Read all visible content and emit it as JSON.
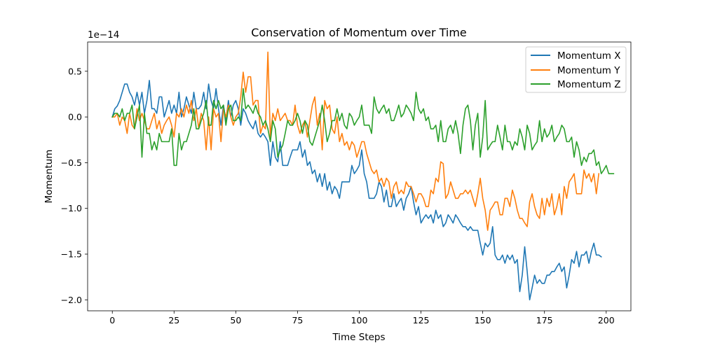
{
  "chart_data": {
    "type": "line",
    "title": "Conservation of Momentum over Time",
    "xlabel": "Time Steps",
    "ylabel": "Momentum",
    "offset_text": "1e−14",
    "xlim": [
      -10,
      210
    ],
    "ylim": [
      -2.12,
      0.82
    ],
    "xticks": [
      0,
      25,
      50,
      75,
      100,
      125,
      150,
      175,
      200
    ],
    "xtick_labels": [
      "0",
      "25",
      "50",
      "75",
      "100",
      "125",
      "150",
      "175",
      "200"
    ],
    "yticks": [
      0.5,
      0.0,
      -0.5,
      -1.0,
      -1.5,
      -2.0
    ],
    "ytick_labels": [
      "0.5",
      "0.0",
      "−0.5",
      "−1.0",
      "−1.5",
      "−2.0"
    ],
    "grid": false,
    "legend_position": "top-right",
    "x_start": 0,
    "x_step": 1,
    "series": [
      {
        "name": "Momentum X",
        "color": "#1f77b4",
        "values": [
          0.0,
          0.09,
          0.12,
          0.18,
          0.27,
          0.36,
          0.36,
          0.27,
          0.22,
          0.13,
          0.27,
          0.13,
          0.27,
          0.04,
          0.18,
          0.4,
          0.09,
          0.09,
          0.04,
          0.22,
          0.22,
          0.0,
          0.09,
          0.18,
          0.04,
          0.13,
          0.04,
          0.27,
          0.0,
          0.09,
          0.22,
          0.13,
          0.04,
          0.27,
          0.09,
          0.09,
          0.13,
          0.27,
          0.09,
          0.36,
          0.18,
          0.09,
          0.31,
          0.09,
          -0.09,
          0.13,
          -0.04,
          0.18,
          0.0,
          0.13,
          0.18,
          0.09,
          -0.09,
          0.09,
          0.04,
          -0.04,
          -0.09,
          -0.13,
          -0.04,
          -0.18,
          -0.22,
          -0.18,
          -0.22,
          -0.27,
          -0.53,
          -0.27,
          -0.44,
          -0.49,
          -0.27,
          -0.53,
          -0.53,
          -0.53,
          -0.44,
          -0.36,
          -0.36,
          -0.36,
          -0.27,
          -0.44,
          -0.36,
          -0.53,
          -0.49,
          -0.62,
          -0.58,
          -0.71,
          -0.62,
          -0.76,
          -0.62,
          -0.8,
          -0.71,
          -0.84,
          -0.76,
          -0.8,
          -0.89,
          -0.71,
          -0.71,
          -0.71,
          -0.71,
          -0.53,
          -0.62,
          -0.58,
          -0.53,
          -0.36,
          -0.62,
          -0.71,
          -0.89,
          -0.89,
          -0.89,
          -0.84,
          -0.71,
          -0.76,
          -0.93,
          -0.8,
          -0.98,
          -0.98,
          -0.84,
          -0.98,
          -0.93,
          -0.89,
          -1.02,
          -0.89,
          -0.84,
          -0.76,
          -0.93,
          -1.07,
          -0.98,
          -1.16,
          -1.11,
          -1.07,
          -1.11,
          -1.07,
          -1.16,
          -1.02,
          -1.11,
          -1.07,
          -1.2,
          -1.16,
          -1.07,
          -1.11,
          -1.16,
          -1.07,
          -1.11,
          -1.16,
          -1.2,
          -1.2,
          -1.24,
          -1.2,
          -1.24,
          -1.24,
          -1.24,
          -1.38,
          -1.51,
          -1.38,
          -1.42,
          -1.38,
          -1.2,
          -1.51,
          -1.56,
          -1.56,
          -1.51,
          -1.6,
          -1.51,
          -1.56,
          -1.51,
          -1.6,
          -1.56,
          -1.91,
          -1.73,
          -1.42,
          -1.69,
          -2.0,
          -1.87,
          -1.73,
          -1.82,
          -1.78,
          -1.82,
          -1.82,
          -1.73,
          -1.73,
          -1.69,
          -1.69,
          -1.64,
          -1.6,
          -1.69,
          -1.64,
          -1.87,
          -1.73,
          -1.56,
          -1.6,
          -1.47,
          -1.64,
          -1.51,
          -1.51,
          -1.47,
          -1.6,
          -1.47,
          -1.38,
          -1.51,
          -1.51,
          -1.53
        ]
      },
      {
        "name": "Momentum Y",
        "color": "#ff7f0e",
        "values": [
          0.0,
          0.0,
          0.04,
          -0.09,
          0.0,
          -0.04,
          -0.18,
          0.04,
          -0.09,
          -0.13,
          0.09,
          -0.04,
          0.04,
          -0.04,
          -0.13,
          -0.13,
          -0.04,
          0.04,
          -0.13,
          -0.04,
          -0.18,
          -0.09,
          -0.04,
          0.0,
          -0.09,
          -0.22,
          0.04,
          0.0,
          0.09,
          0.0,
          0.13,
          0.04,
          0.18,
          -0.04,
          0.09,
          -0.13,
          0.04,
          -0.04,
          -0.36,
          0.0,
          -0.36,
          0.09,
          0.0,
          0.04,
          -0.27,
          0.09,
          0.0,
          0.13,
          0.0,
          -0.09,
          0.0,
          0.04,
          0.22,
          0.49,
          0.27,
          0.44,
          0.44,
          0.13,
          0.18,
          0.18,
          -0.18,
          -0.09,
          -0.13,
          0.71,
          -0.22,
          0.04,
          -0.04,
          0.09,
          -0.04,
          0.0,
          0.04,
          -0.04,
          -0.04,
          -0.09,
          0.13,
          -0.09,
          -0.18,
          -0.09,
          -0.04,
          -0.22,
          -0.04,
          0.13,
          0.22,
          -0.09,
          0.04,
          -0.36,
          0.18,
          0.09,
          0.13,
          -0.13,
          -0.18,
          0.0,
          -0.27,
          -0.18,
          -0.31,
          -0.27,
          -0.36,
          -0.27,
          -0.31,
          -0.44,
          -0.36,
          -0.27,
          -0.27,
          -0.4,
          -0.49,
          -0.58,
          -0.62,
          -0.58,
          -0.71,
          -0.67,
          -0.76,
          -0.67,
          -0.71,
          -0.89,
          -0.76,
          -0.71,
          -0.84,
          -0.8,
          -0.84,
          -0.71,
          -0.76,
          -0.76,
          -0.84,
          -0.93,
          -0.84,
          -0.84,
          -0.89,
          -0.98,
          -0.98,
          -0.8,
          -0.84,
          -0.67,
          -0.71,
          -0.49,
          -0.51,
          -0.89,
          -0.84,
          -0.71,
          -0.8,
          -0.89,
          -0.89,
          -0.84,
          -0.84,
          -0.8,
          -0.84,
          -0.8,
          -0.89,
          -0.98,
          -0.84,
          -0.67,
          -0.89,
          -1.02,
          -1.24,
          -1.02,
          -0.98,
          -0.93,
          -0.93,
          -1.07,
          -1.07,
          -0.89,
          -0.89,
          -0.98,
          -0.8,
          -0.89,
          -1.02,
          -1.11,
          -1.11,
          -1.16,
          -1.2,
          -0.93,
          -0.84,
          -0.98,
          -1.07,
          -1.11,
          -0.89,
          -1.07,
          -0.89,
          -0.98,
          -0.84,
          -1.07,
          -0.98,
          -0.84,
          -1.07,
          -0.76,
          -0.89,
          -0.71,
          -0.67,
          -0.62,
          -0.84,
          -0.84,
          -0.84,
          -0.58,
          -0.67,
          -0.62,
          -0.71,
          -0.62,
          -0.84,
          -0.62
        ]
      },
      {
        "name": "Momentum Z",
        "color": "#2ca02c",
        "values": [
          0.0,
          0.04,
          0.04,
          0.0,
          0.09,
          -0.04,
          0.04,
          0.04,
          0.13,
          -0.13,
          0.0,
          0.13,
          -0.44,
          0.04,
          -0.18,
          -0.18,
          -0.36,
          -0.27,
          -0.36,
          -0.18,
          -0.27,
          -0.27,
          -0.27,
          -0.27,
          -0.13,
          -0.53,
          -0.53,
          -0.18,
          -0.36,
          -0.27,
          -0.27,
          -0.18,
          -0.09,
          0.09,
          -0.13,
          -0.13,
          -0.04,
          0.04,
          0.18,
          -0.09,
          -0.09,
          0.18,
          0.09,
          0.18,
          0.09,
          0.13,
          -0.09,
          0.09,
          0.13,
          -0.04,
          -0.04,
          0.0,
          -0.04,
          0.31,
          0.09,
          0.13,
          0.09,
          0.04,
          0.13,
          0.04,
          0.0,
          -0.09,
          -0.04,
          -0.13,
          -0.27,
          -0.04,
          -0.13,
          -0.44,
          -0.36,
          -0.31,
          -0.18,
          -0.04,
          -0.09,
          -0.09,
          -0.04,
          0.04,
          -0.04,
          -0.18,
          -0.04,
          -0.09,
          -0.27,
          -0.31,
          -0.22,
          -0.13,
          -0.04,
          0.13,
          -0.04,
          -0.27,
          -0.18,
          -0.04,
          -0.04,
          0.09,
          -0.04,
          0.04,
          -0.09,
          -0.13,
          0.04,
          0.0,
          -0.09,
          -0.04,
          0.0,
          0.13,
          -0.09,
          -0.09,
          -0.09,
          -0.18,
          0.22,
          0.09,
          0.04,
          0.09,
          0.13,
          0.04,
          0.09,
          -0.04,
          -0.04,
          0.04,
          0.13,
          0.0,
          0.04,
          0.13,
          0.09,
          0.04,
          -0.04,
          0.27,
          0.09,
          0.04,
          0.09,
          -0.04,
          0.0,
          -0.13,
          -0.13,
          -0.09,
          -0.27,
          -0.04,
          -0.27,
          -0.27,
          -0.13,
          -0.09,
          -0.18,
          -0.04,
          -0.18,
          -0.4,
          -0.09,
          0.09,
          0.13,
          -0.04,
          -0.36,
          -0.09,
          0.04,
          -0.44,
          -0.22,
          0.18,
          -0.36,
          -0.31,
          -0.27,
          -0.27,
          -0.09,
          -0.22,
          -0.36,
          -0.09,
          -0.27,
          -0.27,
          -0.36,
          -0.27,
          -0.31,
          -0.13,
          -0.22,
          -0.36,
          -0.09,
          -0.18,
          -0.36,
          -0.31,
          -0.27,
          -0.04,
          -0.27,
          -0.13,
          -0.22,
          -0.18,
          -0.09,
          -0.27,
          -0.22,
          -0.18,
          -0.09,
          -0.13,
          -0.27,
          -0.27,
          -0.22,
          -0.44,
          -0.27,
          -0.36,
          -0.53,
          -0.44,
          -0.49,
          -0.4,
          -0.4,
          -0.36,
          -0.53,
          -0.49,
          -0.62,
          -0.58,
          -0.53,
          -0.62,
          -0.62,
          -0.62
        ]
      }
    ]
  }
}
